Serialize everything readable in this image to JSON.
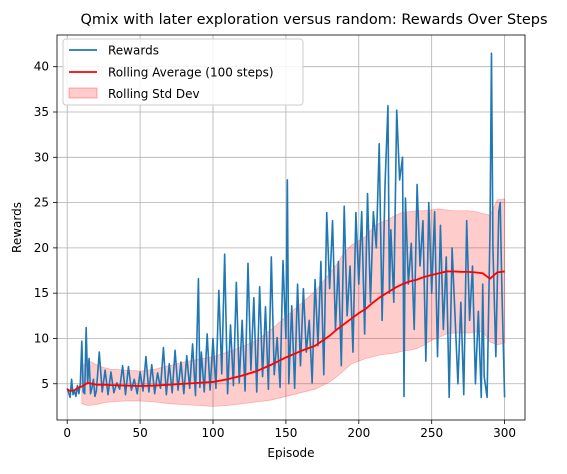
{
  "chart_data": {
    "type": "line",
    "title": "Qmix with later exploration versus random: Rewards Over Steps",
    "xlabel": "Episode",
    "ylabel": "Rewards",
    "xlim": [
      -7,
      314
    ],
    "ylim": [
      1.0,
      43.5
    ],
    "xticks": [
      0,
      50,
      100,
      150,
      200,
      250,
      300
    ],
    "xtick_labels": [
      "0",
      "50",
      "100",
      "150",
      "200",
      "250",
      "300"
    ],
    "yticks": [
      5,
      10,
      15,
      20,
      25,
      30,
      35,
      40
    ],
    "ytick_labels": [
      "5",
      "10",
      "15",
      "20",
      "25",
      "30",
      "35",
      "40"
    ],
    "grid": true,
    "legend_position": "top-left",
    "legend": {
      "rewards": "Rewards",
      "rolling_avg": "Rolling Average (100 steps)",
      "rolling_std": "Rolling Std Dev"
    },
    "colors": {
      "rewards": "#1f77b4",
      "rolling_avg": "#ff0000",
      "rolling_std": "#ff0000",
      "grid": "#b0b0b0"
    },
    "series": [
      {
        "name": "Rewards",
        "x": [
          0,
          2,
          3,
          4,
          5,
          6,
          7,
          8,
          9,
          10,
          11,
          12,
          13,
          14,
          15,
          16,
          17,
          18,
          19,
          20,
          22,
          24,
          26,
          28,
          30,
          32,
          34,
          36,
          38,
          40,
          42,
          44,
          46,
          48,
          50,
          52,
          54,
          56,
          58,
          60,
          62,
          64,
          66,
          68,
          70,
          72,
          74,
          76,
          78,
          80,
          82,
          84,
          86,
          88,
          90,
          91,
          92,
          94,
          96,
          98,
          100,
          102,
          104,
          106,
          108,
          110,
          112,
          114,
          116,
          118,
          120,
          122,
          124,
          126,
          128,
          130,
          132,
          134,
          136,
          138,
          140,
          142,
          144,
          146,
          148,
          150,
          151,
          152,
          154,
          156,
          158,
          160,
          162,
          164,
          166,
          168,
          170,
          172,
          174,
          176,
          178,
          180,
          182,
          184,
          186,
          188,
          190,
          192,
          194,
          196,
          198,
          200,
          202,
          204,
          206,
          208,
          210,
          212,
          214,
          216,
          218,
          220,
          221,
          222,
          224,
          226,
          228,
          230,
          231,
          232,
          234,
          236,
          238,
          240,
          242,
          244,
          246,
          248,
          250,
          252,
          254,
          256,
          258,
          260,
          262,
          264,
          266,
          268,
          270,
          272,
          274,
          276,
          278,
          280,
          282,
          284,
          285,
          286,
          288,
          290,
          291,
          292,
          294,
          296,
          297,
          298,
          300
        ],
        "values": [
          4.5,
          3.5,
          5.5,
          3.8,
          4.2,
          3.6,
          4.8,
          3.9,
          5.0,
          9.7,
          4.1,
          3.9,
          11.2,
          5.0,
          7.8,
          3.9,
          4.6,
          5.5,
          3.6,
          4.2,
          8.5,
          4.1,
          6.5,
          3.8,
          6.3,
          4.0,
          5.1,
          4.4,
          7.0,
          3.8,
          6.9,
          4.3,
          5.5,
          3.9,
          6.3,
          4.2,
          8.0,
          4.1,
          7.1,
          3.9,
          6.2,
          4.5,
          9.0,
          3.8,
          7.2,
          4.0,
          8.7,
          4.3,
          7.4,
          3.9,
          8.1,
          4.5,
          9.4,
          3.7,
          16.6,
          4.6,
          8.5,
          4.1,
          10.5,
          4.3,
          10.0,
          4.5,
          15.3,
          6.1,
          19.3,
          3.9,
          11.5,
          4.8,
          16.2,
          5.1,
          12.0,
          4.2,
          18.3,
          6.5,
          14.5,
          4.1,
          15.7,
          5.8,
          13.5,
          4.4,
          19.0,
          6.0,
          10.1,
          4.6,
          18.6,
          10.0,
          27.5,
          5.0,
          13.6,
          4.5,
          16.0,
          7.0,
          15.5,
          8.5,
          12.0,
          5.1,
          16.5,
          9.2,
          18.5,
          6.0,
          23.9,
          15.5,
          23.0,
          11.0,
          18.5,
          7.0,
          24.6,
          12.5,
          18.0,
          8.5,
          23.9,
          16.0,
          24.0,
          10.5,
          26.0,
          14.0,
          24.0,
          20.0,
          31.5,
          12.0,
          27.0,
          35.7,
          15.0,
          22.0,
          14.0,
          35.2,
          27.5,
          30.0,
          3.6,
          25.5,
          16.0,
          20.5,
          11.0,
          27.0,
          18.0,
          23.0,
          7.5,
          25.0,
          15.0,
          24.0,
          8.0,
          22.5,
          11.0,
          19.0,
          3.5,
          20.0,
          12.5,
          5.0,
          14.0,
          3.8,
          23.0,
          12.0,
          18.0,
          5.0,
          13.0,
          3.5,
          16.0,
          5.8,
          3.5,
          22.0,
          41.5,
          20.0,
          8.0,
          24.0,
          25.0,
          16.5,
          3.5
        ]
      },
      {
        "name": "Rolling Average (100 steps)",
        "x": [
          0,
          2,
          5,
          8,
          10,
          14,
          20,
          25,
          30,
          40,
          50,
          60,
          70,
          80,
          90,
          100,
          110,
          120,
          130,
          140,
          150,
          160,
          170,
          180,
          185,
          190,
          195,
          200,
          205,
          210,
          215,
          220,
          225,
          230,
          235,
          240,
          245,
          250,
          255,
          260,
          265,
          270,
          275,
          280,
          285,
          290,
          295,
          300
        ],
        "values": [
          4.4,
          4.2,
          4.3,
          4.6,
          4.7,
          5.1,
          4.9,
          4.9,
          4.85,
          4.8,
          4.75,
          4.8,
          4.9,
          5.0,
          5.1,
          5.2,
          5.5,
          5.9,
          6.4,
          7.1,
          7.9,
          8.6,
          9.2,
          10.3,
          11.0,
          11.6,
          12.2,
          12.8,
          13.3,
          14.0,
          14.6,
          15.1,
          15.6,
          16.0,
          16.3,
          16.5,
          16.8,
          17.0,
          17.2,
          17.4,
          17.4,
          17.35,
          17.35,
          17.3,
          17.2,
          16.6,
          17.3,
          17.4
        ]
      },
      {
        "name": "Rolling Std Dev",
        "x": [
          10,
          14,
          20,
          25,
          30,
          40,
          50,
          60,
          70,
          80,
          90,
          100,
          110,
          120,
          130,
          140,
          150,
          160,
          170,
          180,
          185,
          190,
          195,
          200,
          205,
          210,
          215,
          220,
          225,
          230,
          235,
          240,
          245,
          250,
          255,
          260,
          265,
          270,
          275,
          280,
          285,
          290,
          295,
          300
        ],
        "upper": [
          6.8,
          7.6,
          7.1,
          6.8,
          6.6,
          6.5,
          6.4,
          6.6,
          7.0,
          7.4,
          7.7,
          8.0,
          8.5,
          9.1,
          9.8,
          11.0,
          12.4,
          13.8,
          15.2,
          17.2,
          18.2,
          19.5,
          20.3,
          20.8,
          21.3,
          22.3,
          22.8,
          23.1,
          23.6,
          23.9,
          24.0,
          24.1,
          24.1,
          24.2,
          24.3,
          24.2,
          24.1,
          24.1,
          24.1,
          24.0,
          23.8,
          23.6,
          25.3,
          25.4
        ],
        "lower": [
          2.8,
          2.6,
          2.7,
          2.9,
          3.0,
          3.1,
          3.1,
          3.0,
          2.8,
          2.7,
          2.6,
          2.5,
          2.6,
          2.8,
          3.0,
          3.2,
          3.6,
          4.0,
          4.4,
          5.2,
          5.8,
          6.5,
          7.2,
          7.5,
          7.8,
          8.0,
          8.2,
          8.3,
          8.4,
          8.6,
          8.7,
          8.9,
          9.3,
          9.8,
          10.1,
          10.5,
          10.6,
          10.6,
          10.6,
          10.7,
          10.8,
          9.6,
          9.3,
          9.5
        ]
      }
    ]
  }
}
